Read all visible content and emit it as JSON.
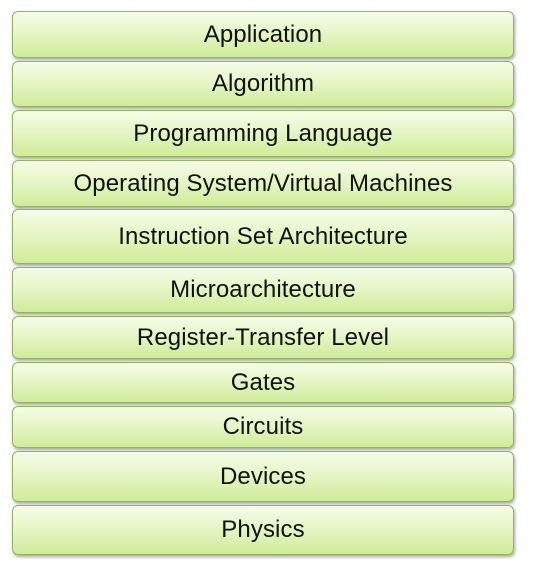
{
  "layers": [
    {
      "label": "Application"
    },
    {
      "label": "Algorithm"
    },
    {
      "label": "Programming Language"
    },
    {
      "label": "Operating System/Virtual Machines"
    },
    {
      "label": "Instruction Set Architecture"
    },
    {
      "label": "Microarchitecture"
    },
    {
      "label": "Register-Transfer Level"
    },
    {
      "label": "Gates"
    },
    {
      "label": "Circuits"
    },
    {
      "label": "Devices"
    },
    {
      "label": "Physics"
    }
  ],
  "colors": {
    "fill_top": "#f6fce9",
    "fill_bottom": "#cfec98",
    "border": "#8fb65a",
    "text": "#111111"
  }
}
